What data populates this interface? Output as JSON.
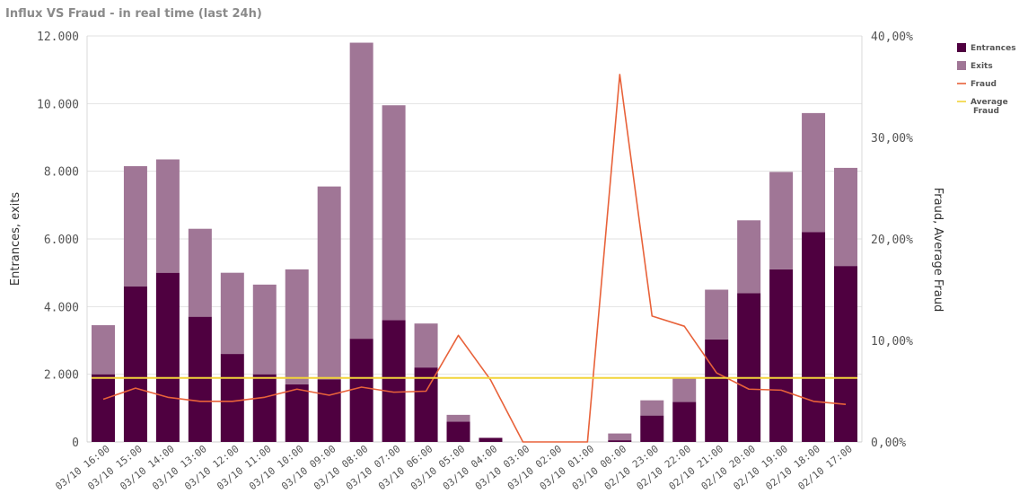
{
  "title": "Influx VS Fraud - in real time (last 24h)",
  "chart_data": {
    "type": "bar",
    "stacked": true,
    "categories": [
      "03/10 16:00",
      "03/10 15:00",
      "03/10 14:00",
      "03/10 13:00",
      "03/10 12:00",
      "03/10 11:00",
      "03/10 10:00",
      "03/10 09:00",
      "03/10 08:00",
      "03/10 07:00",
      "03/10 06:00",
      "03/10 05:00",
      "03/10 04:00",
      "03/10 03:00",
      "03/10 02:00",
      "03/10 01:00",
      "03/10 00:00",
      "02/10 23:00",
      "02/10 22:00",
      "02/10 21:00",
      "02/10 20:00",
      "02/10 19:00",
      "02/10 18:00",
      "02/10 17:00"
    ],
    "series": [
      {
        "name": "Entrances",
        "color": "#4f0040",
        "axis": "left",
        "values": [
          2000,
          4600,
          5000,
          3700,
          2600,
          2000,
          1700,
          1850,
          3050,
          3600,
          2200,
          600,
          120,
          0,
          0,
          0,
          50,
          780,
          1180,
          3030,
          4400,
          5100,
          6200,
          5200
        ]
      },
      {
        "name": "Exits",
        "color": "#a07696",
        "axis": "left",
        "values": [
          1450,
          3550,
          3350,
          2600,
          2400,
          2650,
          3400,
          5700,
          8750,
          6350,
          1300,
          200,
          0,
          0,
          0,
          0,
          200,
          450,
          720,
          1470,
          2150,
          2880,
          3520,
          2900
        ]
      },
      {
        "name": "Fraud",
        "color": "#e8623a",
        "axis": "right",
        "type": "line",
        "values": [
          4.2,
          5.3,
          4.4,
          4.0,
          4.0,
          4.4,
          5.2,
          4.6,
          5.4,
          4.9,
          5.0,
          10.5,
          6.1,
          0,
          0,
          0,
          36.2,
          12.4,
          11.4,
          6.8,
          5.2,
          5.1,
          4.0,
          3.7
        ]
      },
      {
        "name": "Average\nFraud",
        "color": "#f2d43a",
        "axis": "right",
        "type": "line",
        "values": [
          6.3,
          6.3,
          6.3,
          6.3,
          6.3,
          6.3,
          6.3,
          6.3,
          6.3,
          6.3,
          6.3,
          6.3,
          6.3,
          6.3,
          6.3,
          6.3,
          6.3,
          6.3,
          6.3,
          6.3,
          6.3,
          6.3,
          6.3,
          6.3
        ]
      }
    ],
    "y_left": {
      "label": "Entrances, exits",
      "ylim": [
        0,
        12000
      ],
      "ticks": [
        "0",
        "2.000",
        "4.000",
        "6.000",
        "8.000",
        "10.000",
        "12.000"
      ]
    },
    "y_right": {
      "label": "Fraud, Average Fraud",
      "ylim": [
        0,
        40
      ],
      "ticks": [
        "0,00%",
        "10,00%",
        "20,00%",
        "30,00%",
        "40,00%"
      ]
    },
    "grid": true,
    "legend": "right"
  }
}
